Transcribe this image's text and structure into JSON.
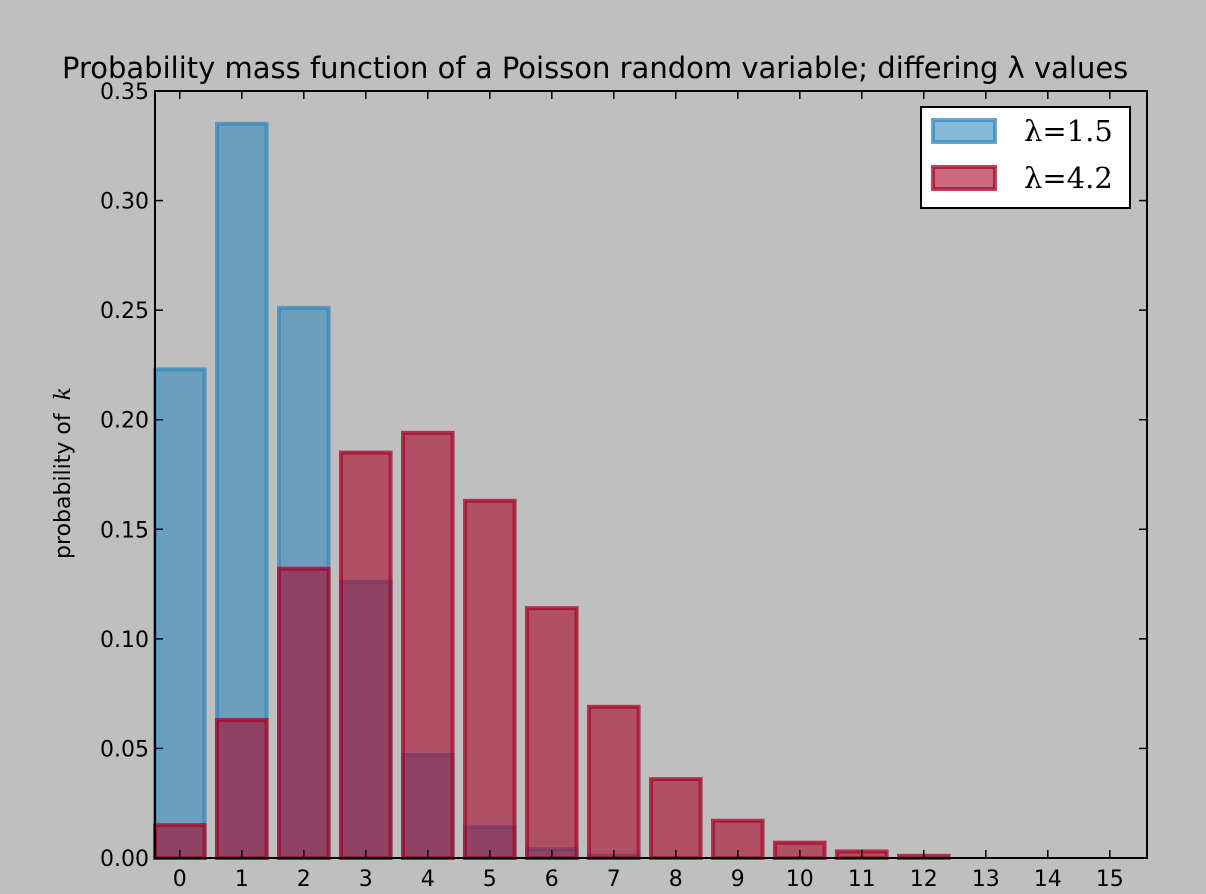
{
  "chart_data": {
    "type": "bar",
    "title": "Probability mass function of a Poisson random variable; differing λ values",
    "xlabel": "",
    "ylabel": "probability of",
    "ylabel_var": "k",
    "categories": [
      "0",
      "1",
      "2",
      "3",
      "4",
      "5",
      "6",
      "7",
      "8",
      "9",
      "10",
      "11",
      "12",
      "13",
      "14",
      "15"
    ],
    "ylim": [
      0,
      0.35
    ],
    "yticks": [
      "0.00",
      "0.05",
      "0.10",
      "0.15",
      "0.20",
      "0.25",
      "0.30",
      "0.35"
    ],
    "grid": false,
    "legend": "top-right",
    "series": [
      {
        "name": "λ=1.5",
        "color": "#348abd",
        "values": [
          0.223,
          0.335,
          0.251,
          0.126,
          0.047,
          0.014,
          0.004,
          0.001,
          0.0,
          0.0,
          0.0,
          0.0,
          0.0,
          0.0,
          0.0,
          0.0
        ]
      },
      {
        "name": "λ=4.2",
        "color": "#a60628",
        "values": [
          0.015,
          0.063,
          0.132,
          0.185,
          0.194,
          0.163,
          0.114,
          0.069,
          0.036,
          0.017,
          0.007,
          0.003,
          0.001,
          0.0,
          0.0,
          0.0
        ]
      }
    ]
  }
}
